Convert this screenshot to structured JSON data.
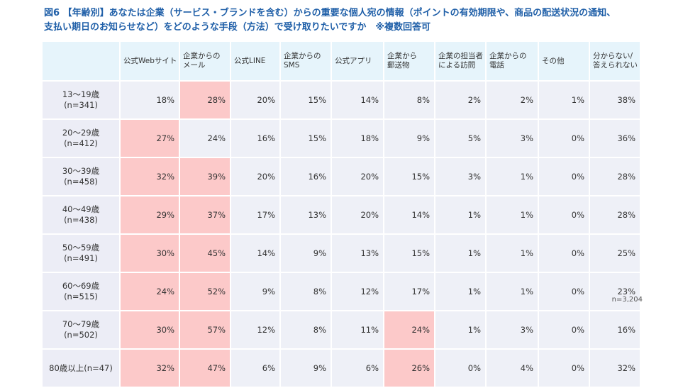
{
  "title": {
    "line1": "図6 【年齢別】あなたは企業（サービス・ブランドを含む）からの重要な個人宛の情報（ポイントの有効期限や、商品の配送状況の通知、",
    "line2": "支払い期日のお知らせなど）をどのような手段（方法）で受け取りたいですか　※複数回答可"
  },
  "note": "n=3,204",
  "colors": {
    "highlight": "#fcc9c9",
    "cell": "#eef0f7",
    "header": "#e6f4fb",
    "title": "#1f5fa8"
  },
  "chart_data": {
    "type": "table",
    "columns": [
      "公式Webサイト",
      "企業からの\nメール",
      "公式LINE",
      "企業からの\nSMS",
      "公式アプリ",
      "企業から\n郵送物",
      "企業の担当者\nによる訪問",
      "企業からの\n電話",
      "その他",
      "分からない/\n答えられない"
    ],
    "rows": [
      {
        "label": [
          "13～19歳",
          "(n=341)"
        ],
        "values": [
          "18%",
          "28%",
          "20%",
          "15%",
          "14%",
          "8%",
          "2%",
          "2%",
          "1%",
          "38%"
        ],
        "highlight": [
          1
        ]
      },
      {
        "label": [
          "20～29歳",
          "(n=412)"
        ],
        "values": [
          "27%",
          "24%",
          "16%",
          "15%",
          "18%",
          "9%",
          "5%",
          "3%",
          "0%",
          "36%"
        ],
        "highlight": [
          0
        ]
      },
      {
        "label": [
          "30～39歳",
          "(n=458)"
        ],
        "values": [
          "32%",
          "39%",
          "20%",
          "16%",
          "20%",
          "15%",
          "3%",
          "1%",
          "0%",
          "28%"
        ],
        "highlight": [
          0,
          1
        ]
      },
      {
        "label": [
          "40～49歳",
          "(n=438)"
        ],
        "values": [
          "29%",
          "37%",
          "17%",
          "13%",
          "20%",
          "14%",
          "1%",
          "1%",
          "0%",
          "28%"
        ],
        "highlight": [
          0,
          1
        ]
      },
      {
        "label": [
          "50～59歳",
          "(n=491)"
        ],
        "values": [
          "30%",
          "45%",
          "14%",
          "9%",
          "13%",
          "15%",
          "1%",
          "1%",
          "0%",
          "25%"
        ],
        "highlight": [
          0,
          1
        ]
      },
      {
        "label": [
          "60～69歳",
          "(n=515)"
        ],
        "values": [
          "24%",
          "52%",
          "9%",
          "8%",
          "12%",
          "17%",
          "1%",
          "1%",
          "0%",
          "23%"
        ],
        "highlight": [
          0,
          1
        ]
      },
      {
        "label": [
          "70～79歳",
          "(n=502)"
        ],
        "values": [
          "30%",
          "57%",
          "12%",
          "8%",
          "11%",
          "24%",
          "1%",
          "3%",
          "0%",
          "16%"
        ],
        "highlight": [
          0,
          1,
          5
        ]
      },
      {
        "label": [
          "80歳以上(n=47)"
        ],
        "values": [
          "32%",
          "47%",
          "6%",
          "9%",
          "6%",
          "26%",
          "0%",
          "4%",
          "0%",
          "32%"
        ],
        "highlight": [
          0,
          1,
          5
        ]
      }
    ]
  }
}
